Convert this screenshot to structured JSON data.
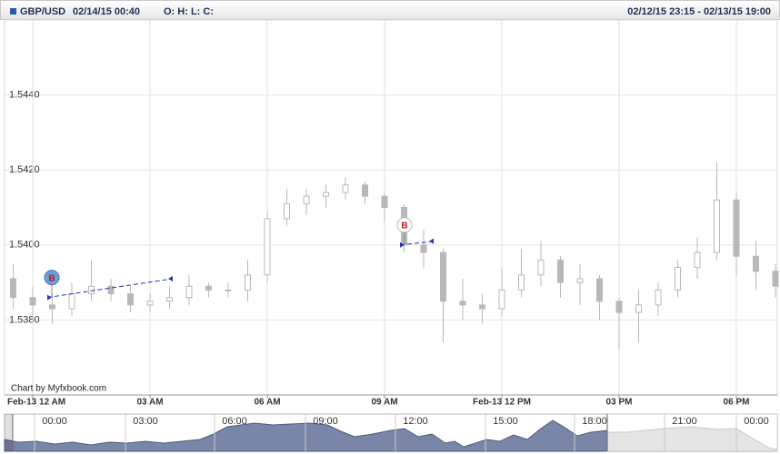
{
  "chart_data": {
    "type": "candlestick",
    "date_time": "02/14/15 00:40",
    "ohlc_label": "O: H: L: C:",
    "range": "02/12/15 23:15 - 02/13/15 19:00",
    "credit": "Chart by Myfxbook.com",
    "categories": [
      null,
      "Feb-13 12 AM",
      null,
      null,
      null,
      null,
      null,
      "03 AM",
      null,
      null,
      null,
      null,
      null,
      "06 AM",
      null,
      null,
      null,
      null,
      null,
      "09 AM",
      null,
      null,
      null,
      null,
      null,
      "Feb-13 12 PM",
      null,
      null,
      null,
      null,
      null,
      "03 PM",
      null,
      null,
      null,
      null,
      null,
      "06 PM",
      null,
      null
    ],
    "series": [
      {
        "name": "GBP/USD",
        "color": "#b8b8b8",
        "open": [
          1.5391,
          1.5386,
          1.5384,
          1.5383,
          1.5387,
          1.5389,
          1.5387,
          1.5384,
          1.5385,
          1.5386,
          1.5389,
          1.5388,
          1.5388,
          1.5392,
          1.5407,
          1.5411,
          1.5413,
          1.5414,
          1.5416,
          1.5413,
          1.541,
          1.54,
          1.5398,
          1.5385,
          1.5384,
          1.5383,
          1.5388,
          1.5392,
          1.5396,
          1.539,
          1.5391,
          1.5385,
          1.5382,
          1.5384,
          1.5388,
          1.5394,
          1.5398,
          1.5412,
          1.5397,
          1.5393
        ],
        "high": [
          1.5395,
          1.5389,
          1.5387,
          1.539,
          1.5396,
          1.5391,
          1.5389,
          1.5387,
          1.5389,
          1.5392,
          1.539,
          1.539,
          1.5396,
          1.5409,
          1.5415,
          1.5415,
          1.5416,
          1.5418,
          1.5417,
          1.5414,
          1.5411,
          1.5404,
          1.5399,
          1.5391,
          1.5387,
          1.5394,
          1.5399,
          1.5401,
          1.5397,
          1.5395,
          1.5392,
          1.5386,
          1.5388,
          1.539,
          1.5396,
          1.5402,
          1.5422,
          1.5414,
          1.5401,
          1.5395
        ],
        "low": [
          1.5383,
          1.538,
          1.5379,
          1.5381,
          1.5385,
          1.5385,
          1.5382,
          1.5382,
          1.5383,
          1.5384,
          1.5386,
          1.5386,
          1.5385,
          1.539,
          1.5405,
          1.5408,
          1.541,
          1.5412,
          1.5411,
          1.5406,
          1.5398,
          1.5394,
          1.5374,
          1.538,
          1.5379,
          1.5381,
          1.5386,
          1.5389,
          1.5386,
          1.5384,
          1.538,
          1.5372,
          1.5374,
          1.5381,
          1.5386,
          1.5391,
          1.5396,
          1.5392,
          1.5388,
          1.5386
        ],
        "close": [
          1.5386,
          1.5384,
          1.5383,
          1.5387,
          1.5389,
          1.5387,
          1.5384,
          1.5385,
          1.5386,
          1.5389,
          1.5388,
          1.5388,
          1.5392,
          1.5407,
          1.5411,
          1.5413,
          1.5414,
          1.5416,
          1.5413,
          1.541,
          1.54,
          1.5398,
          1.5385,
          1.5384,
          1.5383,
          1.5388,
          1.5392,
          1.5396,
          1.539,
          1.5391,
          1.5385,
          1.5382,
          1.5384,
          1.5388,
          1.5394,
          1.5398,
          1.5412,
          1.5397,
          1.5393,
          1.5389
        ]
      }
    ],
    "trades": [
      {
        "label": "B",
        "open": 1.5386,
        "close": 1.5391
      },
      {
        "label": "B",
        "open": 1.54,
        "close": 1.5401
      }
    ],
    "ylim": [
      1.536,
      1.546
    ],
    "yticks": [
      {
        "value": 1.538,
        "label": "1.5380"
      },
      {
        "value": 1.54,
        "label": "1.5400"
      },
      {
        "value": 1.542,
        "label": "1.5420"
      },
      {
        "value": 1.544,
        "label": "1.5440"
      }
    ],
    "grid": true,
    "navigator_labels": [
      "00:00",
      "03:00",
      "06:00",
      "09:00",
      "12:00",
      "15:00",
      "18:00",
      "21:00",
      "00:00"
    ]
  }
}
